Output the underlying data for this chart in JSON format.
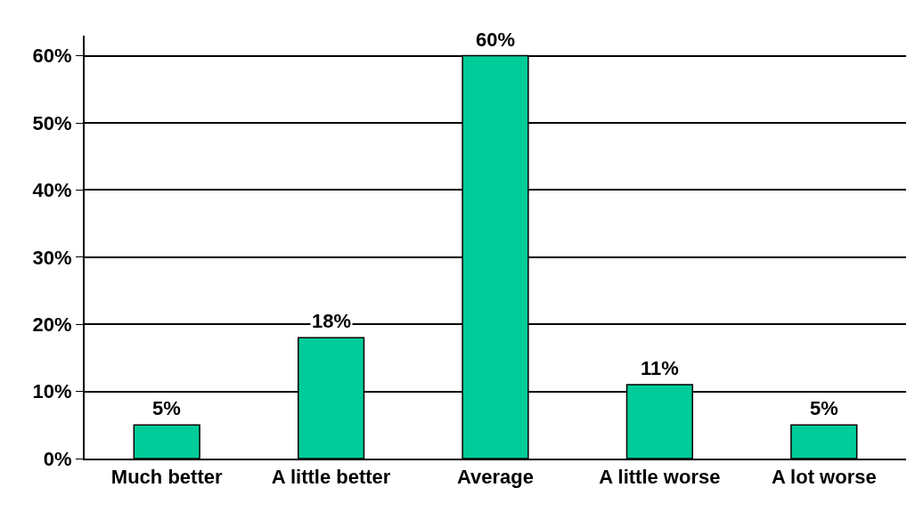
{
  "chart_data": {
    "type": "bar",
    "categories": [
      "Much better",
      "A little better",
      "Average",
      "A little worse",
      "A lot worse"
    ],
    "values": [
      5,
      18,
      60,
      11,
      5
    ],
    "color": "#00cc99",
    "value_labels": [
      "5%",
      "18%",
      "60%",
      "11%",
      "5%"
    ],
    "ylim": [
      0,
      63
    ],
    "yticks": [
      {
        "value": 0,
        "label": "0%"
      },
      {
        "value": 10,
        "label": "10%"
      },
      {
        "value": 20,
        "label": "20%"
      },
      {
        "value": 30,
        "label": "30%"
      },
      {
        "value": 40,
        "label": "40%"
      },
      {
        "value": 50,
        "label": "50%"
      },
      {
        "value": 60,
        "label": "60%"
      }
    ],
    "grid": "y",
    "legend": false
  }
}
